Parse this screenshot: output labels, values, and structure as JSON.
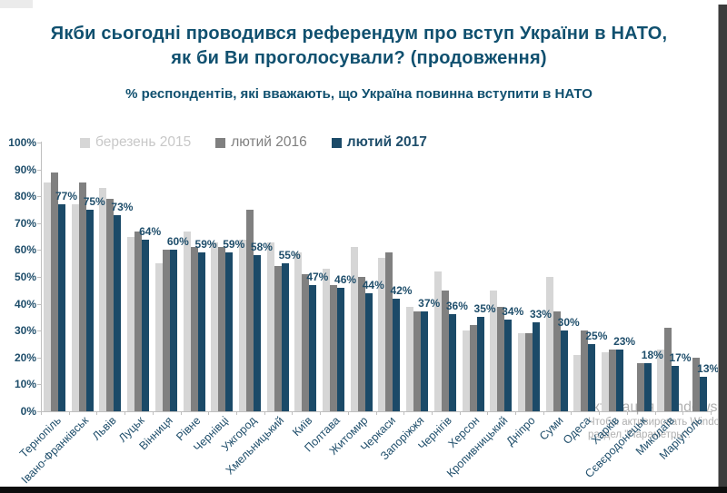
{
  "slide": {
    "title_line1": "Якби сьогодні проводився референдум про вступ України в НАТО,",
    "title_line2": "як би Ви проголосували? (продовження)",
    "subtitle": "% респондентів, які вважають, що Україна повинна вступити в НАТО",
    "title_color": "#10506F"
  },
  "watermark": {
    "line1": "Активация Windows",
    "line2": "Чтобы активировать Windows, перейдите в",
    "line3": "раздел \"Параметры\"."
  },
  "chart_data": {
    "type": "bar",
    "title": "Якби сьогодні проводився референдум про вступ України в НАТО, як би Ви проголосували? (продовження)",
    "subtitle": "% респондентів, які вважають, що Україна повинна вступити в НАТО",
    "ylabel": "%",
    "ylim": [
      0,
      100
    ],
    "ytick_step": 10,
    "grid": false,
    "legend_position": "top-left-inside",
    "categories": [
      "Тернопіль",
      "Івано-Франківськ",
      "Львів",
      "Луцьк",
      "Вінниця",
      "Рівне",
      "Чернівці",
      "Ужгород",
      "Хмельницький",
      "Київ",
      "Полтава",
      "Житомир",
      "Черкаси",
      "Запоріжжя",
      "Чернігів",
      "Херсон",
      "Кропивницький",
      "Дніпро",
      "Суми",
      "Одеса",
      "Харків",
      "Сєвєродонецьк",
      "Миколаїв",
      "Маріуполь"
    ],
    "series": [
      {
        "name": "березень 2015",
        "color": "#D6D6D6",
        "legend_text_color": "#C8C8C8",
        "values": [
          85,
          77,
          83,
          65,
          55,
          67,
          63,
          64,
          63,
          59,
          53,
          61,
          57,
          39,
          52,
          30,
          45,
          29,
          50,
          21,
          22,
          null,
          23,
          null
        ]
      },
      {
        "name": "лютий 2016",
        "color": "#808080",
        "legend_text_color": "#7F7F7F",
        "values": [
          89,
          85,
          79,
          67,
          60,
          61,
          61,
          75,
          54,
          51,
          47,
          50,
          59,
          37,
          45,
          32,
          39,
          29,
          37,
          30,
          23,
          18,
          31,
          20
        ]
      },
      {
        "name": "лютий 2017",
        "color": "#1B4A68",
        "legend_text_color": "#1F4E6B",
        "bold_legend": true,
        "show_labels": true,
        "values": [
          77,
          75,
          73,
          64,
          60,
          59,
          59,
          58,
          55,
          47,
          46,
          44,
          42,
          37,
          36,
          35,
          34,
          33,
          30,
          25,
          23,
          18,
          17,
          13
        ]
      }
    ],
    "label_suffix": "%",
    "axis_color": "#BFBFBF",
    "axis_text_color": "#1F4E6B"
  }
}
